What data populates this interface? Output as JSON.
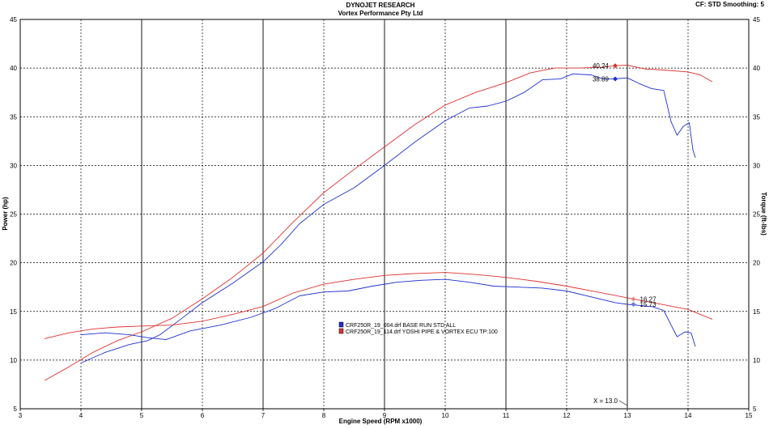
{
  "header": {
    "title": "DYNOJET RESEARCH",
    "subtitle": "Vortex Performance Pty Ltd",
    "settings": "CF: STD  Smoothing: 5"
  },
  "chart_data": {
    "type": "line",
    "xlabel": "Engine Speed (RPM x1000)",
    "ylabel_left": "Power (hp)",
    "ylabel_right": "Torque (ft-lbs)",
    "xlim": [
      3,
      15
    ],
    "ylim": [
      5,
      45
    ],
    "x_ticks": [
      "3",
      "4",
      "5",
      "6",
      "7",
      "8",
      "9",
      "10",
      "11",
      "12",
      "13",
      "14",
      "15"
    ],
    "y_ticks": [
      "5",
      "10",
      "15",
      "20",
      "25",
      "30",
      "35",
      "40",
      "45"
    ],
    "grid": true,
    "grid_solid_x": [
      5,
      7,
      9,
      11,
      13
    ],
    "colors": {
      "base": "#1e2fd0",
      "mod": "#e03030",
      "cursor": "#555555"
    },
    "series": [
      {
        "name": "CRF250R_19_004.drf BASE RUN STD ALL",
        "kind": "power",
        "color": "#1e2fd0",
        "points": [
          [
            4.0,
            9.7
          ],
          [
            4.4,
            10.8
          ],
          [
            4.8,
            11.6
          ],
          [
            5.1,
            12.0
          ],
          [
            5.3,
            12.6
          ],
          [
            5.6,
            14.0
          ],
          [
            6.0,
            15.9
          ],
          [
            6.5,
            17.9
          ],
          [
            7.0,
            20.1
          ],
          [
            7.3,
            21.9
          ],
          [
            7.6,
            24.0
          ],
          [
            8.0,
            26.0
          ],
          [
            8.5,
            27.7
          ],
          [
            9.0,
            30.0
          ],
          [
            9.5,
            32.4
          ],
          [
            10.0,
            34.6
          ],
          [
            10.4,
            35.9
          ],
          [
            10.7,
            36.1
          ],
          [
            11.0,
            36.6
          ],
          [
            11.3,
            37.5
          ],
          [
            11.6,
            38.8
          ],
          [
            11.9,
            38.9
          ],
          [
            12.1,
            39.4
          ],
          [
            12.4,
            39.3
          ],
          [
            12.6,
            38.9
          ],
          [
            12.8,
            38.9
          ],
          [
            13.0,
            39.0
          ],
          [
            13.2,
            38.4
          ],
          [
            13.4,
            37.9
          ],
          [
            13.6,
            37.7
          ],
          [
            13.72,
            34.5
          ],
          [
            13.82,
            33.1
          ],
          [
            13.92,
            34.0
          ],
          [
            14.02,
            34.4
          ],
          [
            14.08,
            31.6
          ],
          [
            14.12,
            30.8
          ]
        ]
      },
      {
        "name": "CRF250R_19_114.drf YOSHI PIPE & VORTEX ECU TP:100",
        "kind": "power",
        "color": "#e03030",
        "points": [
          [
            3.4,
            7.9
          ],
          [
            3.8,
            9.3
          ],
          [
            4.2,
            10.8
          ],
          [
            4.6,
            12.0
          ],
          [
            5.0,
            12.9
          ],
          [
            5.5,
            14.3
          ],
          [
            6.0,
            16.3
          ],
          [
            6.5,
            18.5
          ],
          [
            7.0,
            21.0
          ],
          [
            7.5,
            24.2
          ],
          [
            8.0,
            27.2
          ],
          [
            8.5,
            29.6
          ],
          [
            9.0,
            31.9
          ],
          [
            9.5,
            34.2
          ],
          [
            10.0,
            36.2
          ],
          [
            10.5,
            37.5
          ],
          [
            11.0,
            38.5
          ],
          [
            11.4,
            39.5
          ],
          [
            11.8,
            40.0
          ],
          [
            12.2,
            40.0
          ],
          [
            12.6,
            40.1
          ],
          [
            12.8,
            40.24
          ],
          [
            13.0,
            40.3
          ],
          [
            13.3,
            39.9
          ],
          [
            13.6,
            39.8
          ],
          [
            14.0,
            39.6
          ],
          [
            14.2,
            39.3
          ],
          [
            14.4,
            38.6
          ]
        ]
      },
      {
        "name": "CRF250R_19_004.drf BASE RUN STD ALL",
        "kind": "torque",
        "color": "#1e2fd0",
        "points": [
          [
            4.0,
            12.6
          ],
          [
            4.4,
            12.8
          ],
          [
            4.8,
            12.6
          ],
          [
            5.1,
            12.3
          ],
          [
            5.4,
            12.1
          ],
          [
            5.8,
            13.0
          ],
          [
            6.3,
            13.6
          ],
          [
            6.8,
            14.4
          ],
          [
            7.2,
            15.3
          ],
          [
            7.6,
            16.6
          ],
          [
            8.0,
            17.0
          ],
          [
            8.4,
            17.1
          ],
          [
            8.8,
            17.6
          ],
          [
            9.2,
            18.0
          ],
          [
            9.6,
            18.2
          ],
          [
            10.0,
            18.3
          ],
          [
            10.4,
            18.0
          ],
          [
            10.8,
            17.6
          ],
          [
            11.2,
            17.5
          ],
          [
            11.6,
            17.4
          ],
          [
            12.0,
            17.1
          ],
          [
            12.4,
            16.5
          ],
          [
            12.8,
            15.9
          ],
          [
            13.0,
            15.73
          ],
          [
            13.4,
            15.5
          ],
          [
            13.6,
            15.1
          ],
          [
            13.72,
            13.6
          ],
          [
            13.82,
            12.4
          ],
          [
            13.95,
            12.9
          ],
          [
            14.05,
            12.8
          ],
          [
            14.12,
            11.4
          ]
        ]
      },
      {
        "name": "CRF250R_19_114.drf YOSHI PIPE & VORTEX ECU TP:100",
        "kind": "torque",
        "color": "#e03030",
        "points": [
          [
            3.4,
            12.2
          ],
          [
            3.8,
            12.8
          ],
          [
            4.2,
            13.2
          ],
          [
            4.6,
            13.4
          ],
          [
            5.0,
            13.5
          ],
          [
            5.5,
            13.6
          ],
          [
            6.0,
            14.0
          ],
          [
            6.5,
            14.7
          ],
          [
            7.0,
            15.5
          ],
          [
            7.5,
            16.9
          ],
          [
            8.0,
            17.8
          ],
          [
            8.5,
            18.3
          ],
          [
            9.0,
            18.7
          ],
          [
            9.5,
            18.9
          ],
          [
            10.0,
            19.0
          ],
          [
            10.5,
            18.8
          ],
          [
            11.0,
            18.5
          ],
          [
            11.5,
            18.1
          ],
          [
            12.0,
            17.6
          ],
          [
            12.5,
            17.0
          ],
          [
            13.0,
            16.4
          ],
          [
            13.5,
            15.8
          ],
          [
            14.0,
            15.2
          ],
          [
            14.4,
            14.2
          ]
        ]
      }
    ],
    "markers": [
      {
        "label": "40.24",
        "x": 12.8,
        "y": 40.24,
        "color": "#e03030",
        "side": "left"
      },
      {
        "label": "38.89",
        "x": 12.8,
        "y": 38.89,
        "color": "#1e2fd0",
        "side": "left"
      },
      {
        "label": "16.27",
        "x": 13.1,
        "y": 16.27,
        "color": "#e88888",
        "side": "right"
      },
      {
        "label": "15.73",
        "x": 13.1,
        "y": 15.73,
        "color": "#6a7ad8",
        "side": "right"
      }
    ],
    "cursor": {
      "x": 13.0,
      "label": "X = 13.0"
    },
    "legend": {
      "placement": "center",
      "entries": [
        "CRF250R_19_004.drf BASE RUN STD ALL",
        "CRF250R_19_114.drf YOSHI PIPE & VORTEX ECU TP:100"
      ]
    }
  }
}
